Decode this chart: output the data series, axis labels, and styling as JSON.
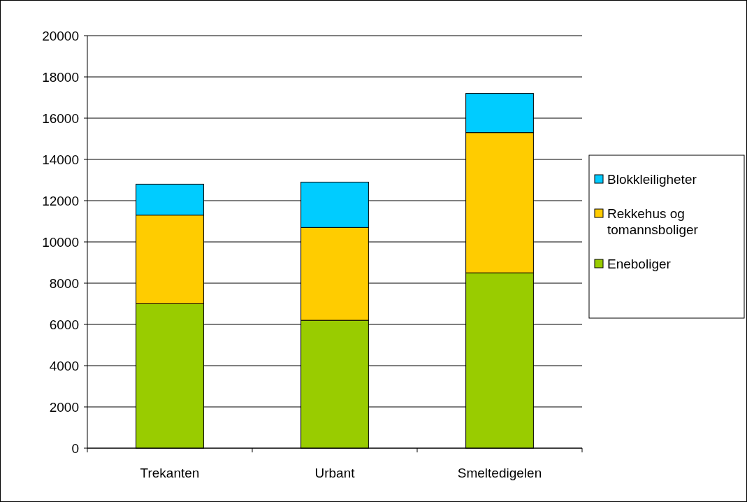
{
  "chart_data": {
    "type": "bar",
    "stacked": true,
    "categories": [
      "Trekanten",
      "Urbant",
      "Smeltedigelen"
    ],
    "series": [
      {
        "name": "Eneboliger",
        "color": "#99cc00",
        "values": [
          7000,
          6200,
          8500
        ]
      },
      {
        "name": "Rekkehus og tomannsboliger",
        "color": "#ffcc00",
        "values": [
          4300,
          4500,
          6800
        ]
      },
      {
        "name": "Blokkleiligheter",
        "color": "#00ccff",
        "values": [
          1500,
          2200,
          1900
        ]
      }
    ],
    "ylim": [
      0,
      20000
    ],
    "yticks": [
      0,
      2000,
      4000,
      6000,
      8000,
      10000,
      12000,
      14000,
      16000,
      18000,
      20000
    ],
    "grid": "y",
    "legend": "right"
  }
}
